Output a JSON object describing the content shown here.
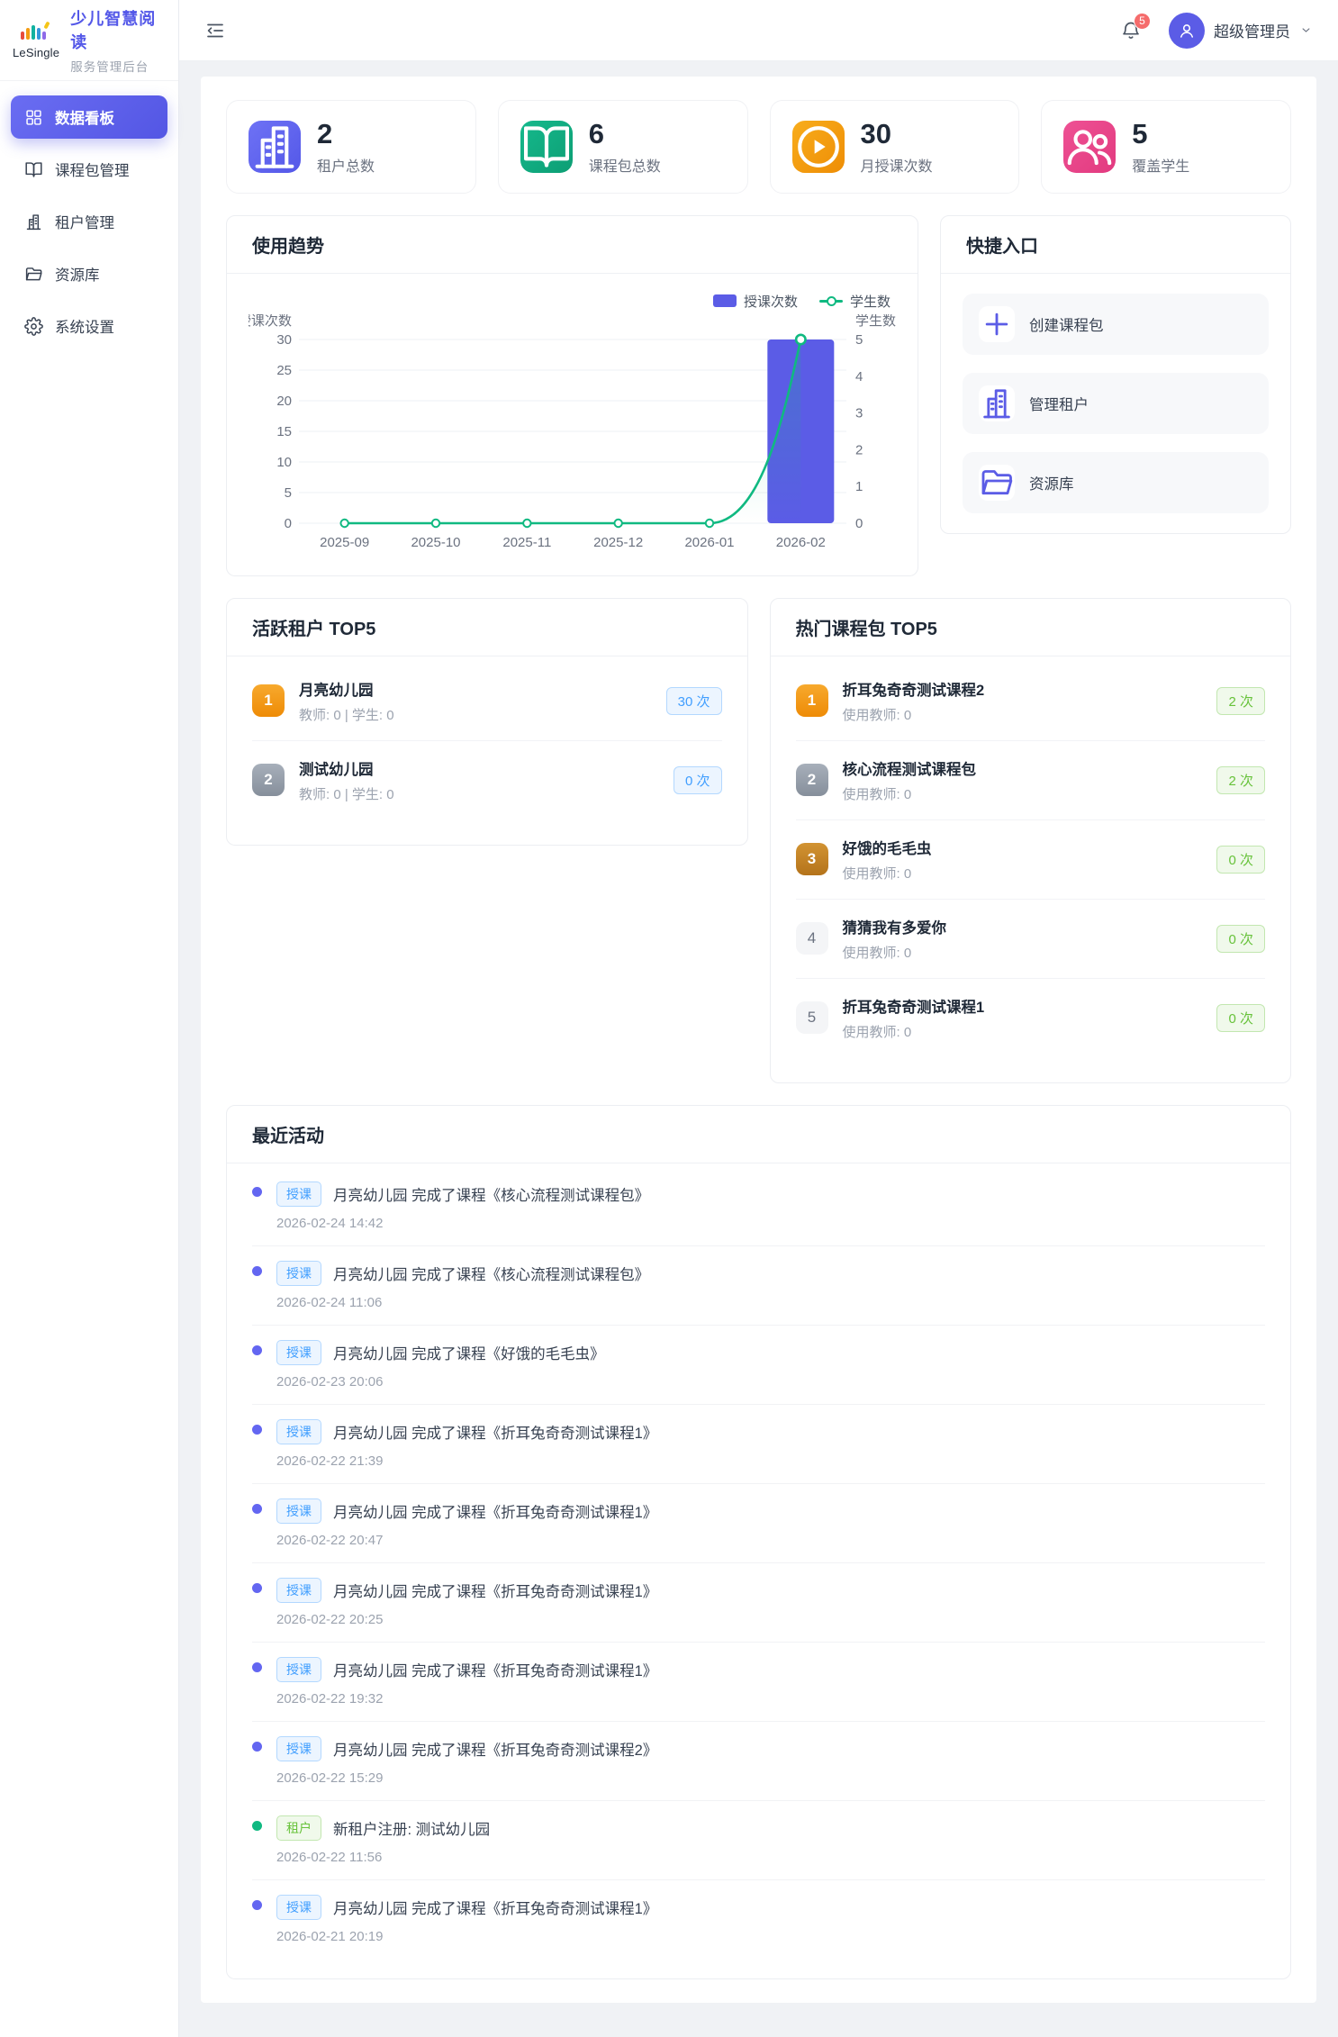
{
  "brand": {
    "logo_text": "LeSingle",
    "title": "少儿智慧阅读",
    "subtitle": "服务管理后台"
  },
  "sidebar": {
    "items": [
      {
        "label": "数据看板",
        "icon": "dashboard-icon",
        "state": "active"
      },
      {
        "label": "课程包管理",
        "icon": "book-icon"
      },
      {
        "label": "租户管理",
        "icon": "building-icon"
      },
      {
        "label": "资源库",
        "icon": "folder-icon"
      },
      {
        "label": "系统设置",
        "icon": "gear-icon"
      }
    ]
  },
  "header": {
    "notification_count": "5",
    "user_name": "超级管理员"
  },
  "stats": [
    {
      "value": "2",
      "label": "租户总数",
      "icon": "building-icon",
      "theme": "purple",
      "color": "#5b5ce6"
    },
    {
      "value": "6",
      "label": "课程包总数",
      "icon": "book-icon",
      "theme": "green",
      "color": "#10a37f"
    },
    {
      "value": "30",
      "label": "月授课次数",
      "icon": "play-icon",
      "theme": "orange",
      "color": "#f29006"
    },
    {
      "value": "5",
      "label": "覆盖学生",
      "icon": "users-icon",
      "theme": "pink",
      "color": "#e8427f"
    }
  ],
  "chart_data": {
    "type": "bar+line",
    "title": "使用趋势",
    "categories": [
      "2025-09",
      "2025-10",
      "2025-11",
      "2025-12",
      "2026-01",
      "2026-02"
    ],
    "series": [
      {
        "name": "授课次数",
        "type": "bar",
        "axis": "left",
        "values": [
          0,
          0,
          0,
          0,
          0,
          30
        ],
        "color": "#5b5ce6"
      },
      {
        "name": "学生数",
        "type": "line",
        "axis": "right",
        "values": [
          0,
          0,
          0,
          0,
          0,
          5
        ],
        "color": "#10b981"
      }
    ],
    "left_axis": {
      "label": "授课次数",
      "min": 0,
      "max": 30,
      "step": 5
    },
    "right_axis": {
      "label": "学生数",
      "min": 0,
      "max": 5,
      "step": 1
    },
    "grid": true,
    "legend_position": "top-right"
  },
  "quick_entry": {
    "title": "快捷入口",
    "items": [
      {
        "label": "创建课程包",
        "icon": "plus-icon"
      },
      {
        "label": "管理租户",
        "icon": "building-icon"
      },
      {
        "label": "资源库",
        "icon": "folder-icon"
      }
    ]
  },
  "active_tenants": {
    "title": "活跃租户 TOP5",
    "items": [
      {
        "rank": "1",
        "name": "月亮幼儿园",
        "meta": "教师: 0 | 学生: 0",
        "count": "30 次"
      },
      {
        "rank": "2",
        "name": "测试幼儿园",
        "meta": "教师: 0 | 学生: 0",
        "count": "0 次"
      }
    ]
  },
  "hot_packages": {
    "title": "热门课程包 TOP5",
    "items": [
      {
        "rank": "1",
        "name": "折耳兔奇奇测试课程2",
        "meta": "使用教师: 0",
        "count": "2 次"
      },
      {
        "rank": "2",
        "name": "核心流程测试课程包",
        "meta": "使用教师: 0",
        "count": "2 次"
      },
      {
        "rank": "3",
        "name": "好饿的毛毛虫",
        "meta": "使用教师: 0",
        "count": "0 次"
      },
      {
        "rank": "4",
        "name": "猜猜我有多爱你",
        "meta": "使用教师: 0",
        "count": "0 次"
      },
      {
        "rank": "5",
        "name": "折耳兔奇奇测试课程1",
        "meta": "使用教师: 0",
        "count": "0 次"
      }
    ]
  },
  "recent_activity": {
    "title": "最近活动",
    "items": [
      {
        "type": "course",
        "badge": "授课",
        "text": "月亮幼儿园 完成了课程《核心流程测试课程包》",
        "time": "2026-02-24 14:42"
      },
      {
        "type": "course",
        "badge": "授课",
        "text": "月亮幼儿园 完成了课程《核心流程测试课程包》",
        "time": "2026-02-24 11:06"
      },
      {
        "type": "course",
        "badge": "授课",
        "text": "月亮幼儿园 完成了课程《好饿的毛毛虫》",
        "time": "2026-02-23 20:06"
      },
      {
        "type": "course",
        "badge": "授课",
        "text": "月亮幼儿园 完成了课程《折耳兔奇奇测试课程1》",
        "time": "2026-02-22 21:39"
      },
      {
        "type": "course",
        "badge": "授课",
        "text": "月亮幼儿园 完成了课程《折耳兔奇奇测试课程1》",
        "time": "2026-02-22 20:47"
      },
      {
        "type": "course",
        "badge": "授课",
        "text": "月亮幼儿园 完成了课程《折耳兔奇奇测试课程1》",
        "time": "2026-02-22 20:25"
      },
      {
        "type": "course",
        "badge": "授课",
        "text": "月亮幼儿园 完成了课程《折耳兔奇奇测试课程1》",
        "time": "2026-02-22 19:32"
      },
      {
        "type": "course",
        "badge": "授课",
        "text": "月亮幼儿园 完成了课程《折耳兔奇奇测试课程2》",
        "time": "2026-02-22 15:29"
      },
      {
        "type": "tenant",
        "badge": "租户",
        "text": "新租户注册: 测试幼儿园",
        "time": "2026-02-22 11:56"
      },
      {
        "type": "course",
        "badge": "授课",
        "text": "月亮幼儿园 完成了课程《折耳兔奇奇测试课程1》",
        "time": "2026-02-21 20:19"
      }
    ]
  }
}
